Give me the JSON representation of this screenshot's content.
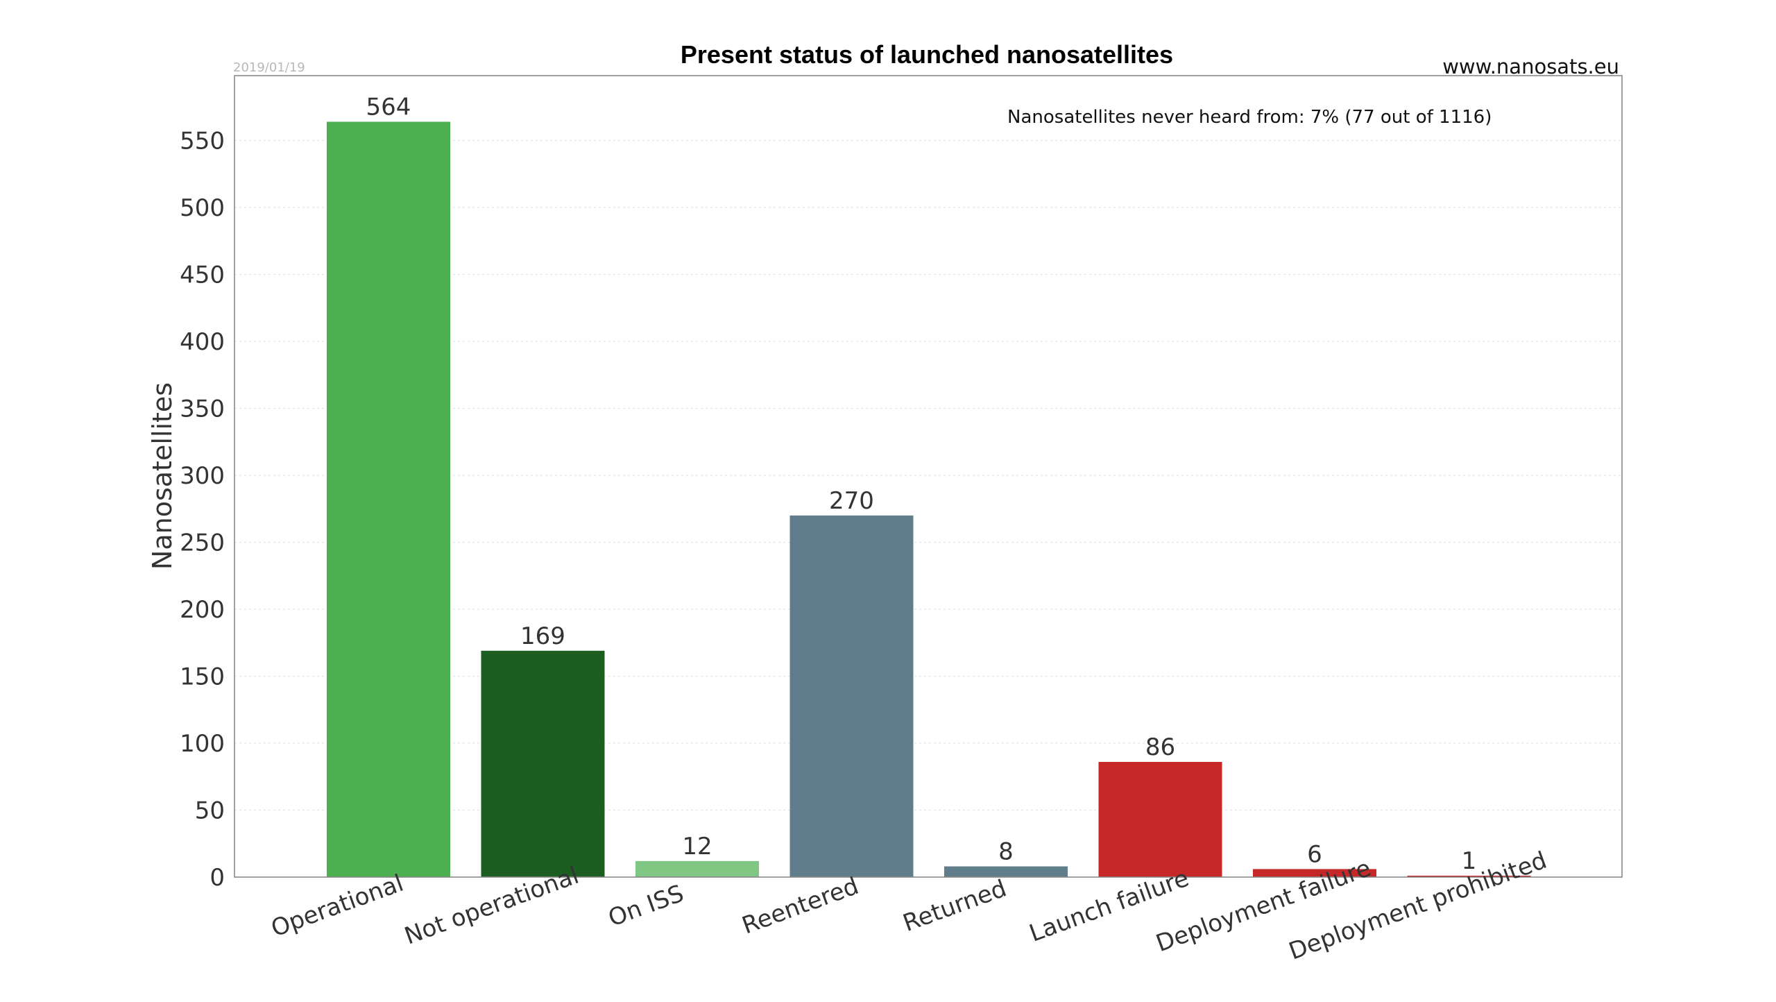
{
  "chart_data": {
    "type": "bar",
    "title": "Present status of launched nanosatellites",
    "date": "2019/01/19",
    "source": "www.nanosats.eu",
    "annotation": "Nanosatellites never heard from: 7% (77 out of 1116)",
    "xlabel": "",
    "ylabel": "Nanosatellites",
    "ylim": [
      0,
      600
    ],
    "yticks": [
      0,
      50,
      100,
      150,
      200,
      250,
      300,
      350,
      400,
      450,
      500,
      550
    ],
    "grid": true,
    "categories": [
      "Operational",
      "Not operational",
      "On ISS",
      "Reentered",
      "Returned",
      "Launch failure",
      "Deployment failure",
      "Deployment prohibited"
    ],
    "values": [
      564,
      169,
      12,
      270,
      8,
      86,
      6,
      1
    ],
    "colors": [
      "#4caf50",
      "#1b5e20",
      "#81c784",
      "#607d8b",
      "#607d8b",
      "#c62828",
      "#c62828",
      "#c62828"
    ]
  }
}
